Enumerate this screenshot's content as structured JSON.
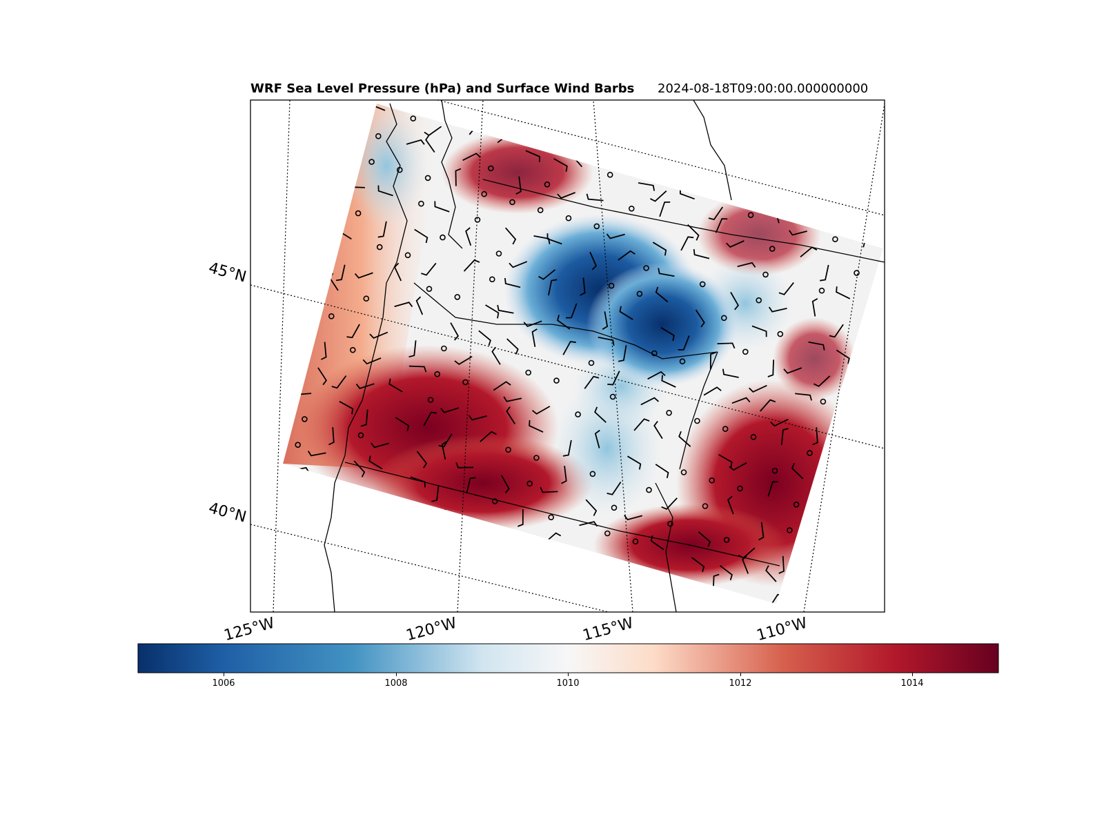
{
  "title": {
    "main": "WRF Sea Level Pressure (hPa) and Surface Wind Barbs",
    "time": "2024-08-18T09:00:00.000000000"
  },
  "map": {
    "lat_labels": [
      "45°N",
      "40°N"
    ],
    "lon_labels": [
      "125°W",
      "120°W",
      "115°W",
      "110°W"
    ],
    "field": "sea level pressure",
    "units": "hPa",
    "overlay": "surface wind barbs"
  },
  "colorbar": {
    "cmap": "RdBu_r",
    "vmin": 1005,
    "vmax": 1015,
    "ticks": [
      "1006",
      "1008",
      "1010",
      "1012",
      "1014"
    ],
    "colors": {
      "low": "#08306b",
      "mid_low": "#4393c3",
      "center": "#f7f7f7",
      "mid_high": "#d6604d",
      "high": "#67001f"
    }
  }
}
